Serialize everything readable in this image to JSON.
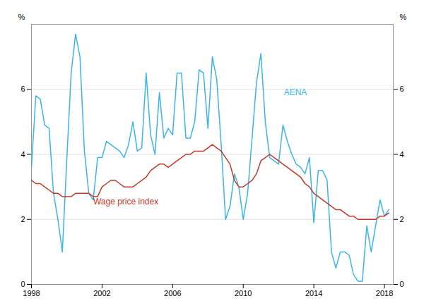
{
  "chart_data": {
    "type": "line",
    "ylabel": "%",
    "y2label": "%",
    "x": [
      1998.0,
      1998.25,
      1998.5,
      1998.75,
      1999.0,
      1999.25,
      1999.5,
      1999.75,
      2000.0,
      2000.25,
      2000.5,
      2000.75,
      2001.0,
      2001.25,
      2001.5,
      2001.75,
      2002.0,
      2002.25,
      2002.5,
      2002.75,
      2003.0,
      2003.25,
      2003.5,
      2003.75,
      2004.0,
      2004.25,
      2004.5,
      2004.75,
      2005.0,
      2005.25,
      2005.5,
      2005.75,
      2006.0,
      2006.25,
      2006.5,
      2006.75,
      2007.0,
      2007.25,
      2007.5,
      2007.75,
      2008.0,
      2008.25,
      2008.5,
      2008.75,
      2009.0,
      2009.25,
      2009.5,
      2009.75,
      2010.0,
      2010.25,
      2010.5,
      2010.75,
      2011.0,
      2011.25,
      2011.5,
      2011.75,
      2012.0,
      2012.25,
      2012.5,
      2012.75,
      2013.0,
      2013.25,
      2013.5,
      2013.75,
      2014.0,
      2014.25,
      2014.5,
      2014.75,
      2015.0,
      2015.25,
      2015.5,
      2015.75,
      2016.0,
      2016.25,
      2016.5,
      2016.75,
      2017.0,
      2017.25,
      2017.5,
      2017.75,
      2018.0,
      2018.25
    ],
    "series": [
      {
        "name": "AENA",
        "color": "#3bb5e8",
        "values": [
          3.6,
          5.8,
          5.7,
          4.9,
          4.8,
          2.8,
          2.0,
          1.0,
          3.8,
          6.5,
          7.7,
          7.0,
          4.1,
          2.8,
          2.6,
          3.9,
          3.9,
          4.4,
          4.3,
          4.2,
          4.1,
          3.9,
          4.3,
          5.0,
          4.1,
          4.2,
          6.5,
          4.6,
          4.0,
          5.9,
          4.5,
          4.8,
          4.6,
          6.5,
          6.5,
          4.5,
          4.5,
          5.0,
          6.6,
          6.5,
          4.8,
          7.0,
          6.3,
          4.3,
          2.0,
          2.4,
          3.4,
          3.0,
          2.0,
          2.8,
          4.5,
          6.2,
          7.1,
          5.0,
          3.9,
          3.8,
          3.7,
          4.9,
          4.4,
          4.0,
          3.7,
          3.6,
          3.4,
          3.9,
          1.9,
          3.5,
          3.5,
          3.2,
          1.0,
          0.5,
          1.0,
          1.0,
          0.9,
          0.3,
          0.1,
          0.1,
          1.8,
          1.0,
          1.8,
          2.6,
          2.1,
          2.3
        ]
      },
      {
        "name": "Wage price index",
        "color": "#c0392b",
        "values": [
          3.2,
          3.1,
          3.1,
          3.0,
          2.9,
          2.8,
          2.8,
          2.7,
          2.7,
          2.7,
          2.8,
          2.8,
          2.8,
          2.8,
          2.7,
          2.7,
          3.0,
          3.1,
          3.2,
          3.2,
          3.1,
          3.0,
          3.0,
          3.0,
          3.1,
          3.2,
          3.3,
          3.5,
          3.6,
          3.7,
          3.7,
          3.6,
          3.7,
          3.8,
          3.9,
          4.0,
          4.0,
          4.1,
          4.1,
          4.1,
          4.2,
          4.3,
          4.2,
          4.1,
          3.9,
          3.7,
          3.2,
          3.0,
          3.0,
          3.1,
          3.2,
          3.4,
          3.8,
          3.9,
          4.0,
          3.9,
          3.8,
          3.7,
          3.6,
          3.5,
          3.4,
          3.3,
          3.1,
          3.0,
          2.8,
          2.7,
          2.6,
          2.5,
          2.4,
          2.3,
          2.3,
          2.2,
          2.1,
          2.1,
          2.0,
          2.0,
          2.0,
          2.0,
          2.0,
          2.1,
          2.1,
          2.2
        ]
      }
    ],
    "annotations": [
      {
        "text": "AENA",
        "x": 2012.3,
        "y": 5.9,
        "color": "#3bb5e8"
      },
      {
        "text": "Wage price index",
        "x": 2001.5,
        "y": 2.55,
        "color": "#c0392b"
      }
    ],
    "xlim": [
      1998,
      2018.5
    ],
    "xticks": [
      1998,
      2002,
      2006,
      2010,
      2014,
      2018
    ],
    "ylim": [
      0,
      8
    ],
    "yticks": [
      0,
      2,
      4,
      6
    ],
    "y2lim": [
      0,
      8
    ],
    "y2ticks": [
      0,
      2,
      4,
      6
    ],
    "grid": true
  }
}
